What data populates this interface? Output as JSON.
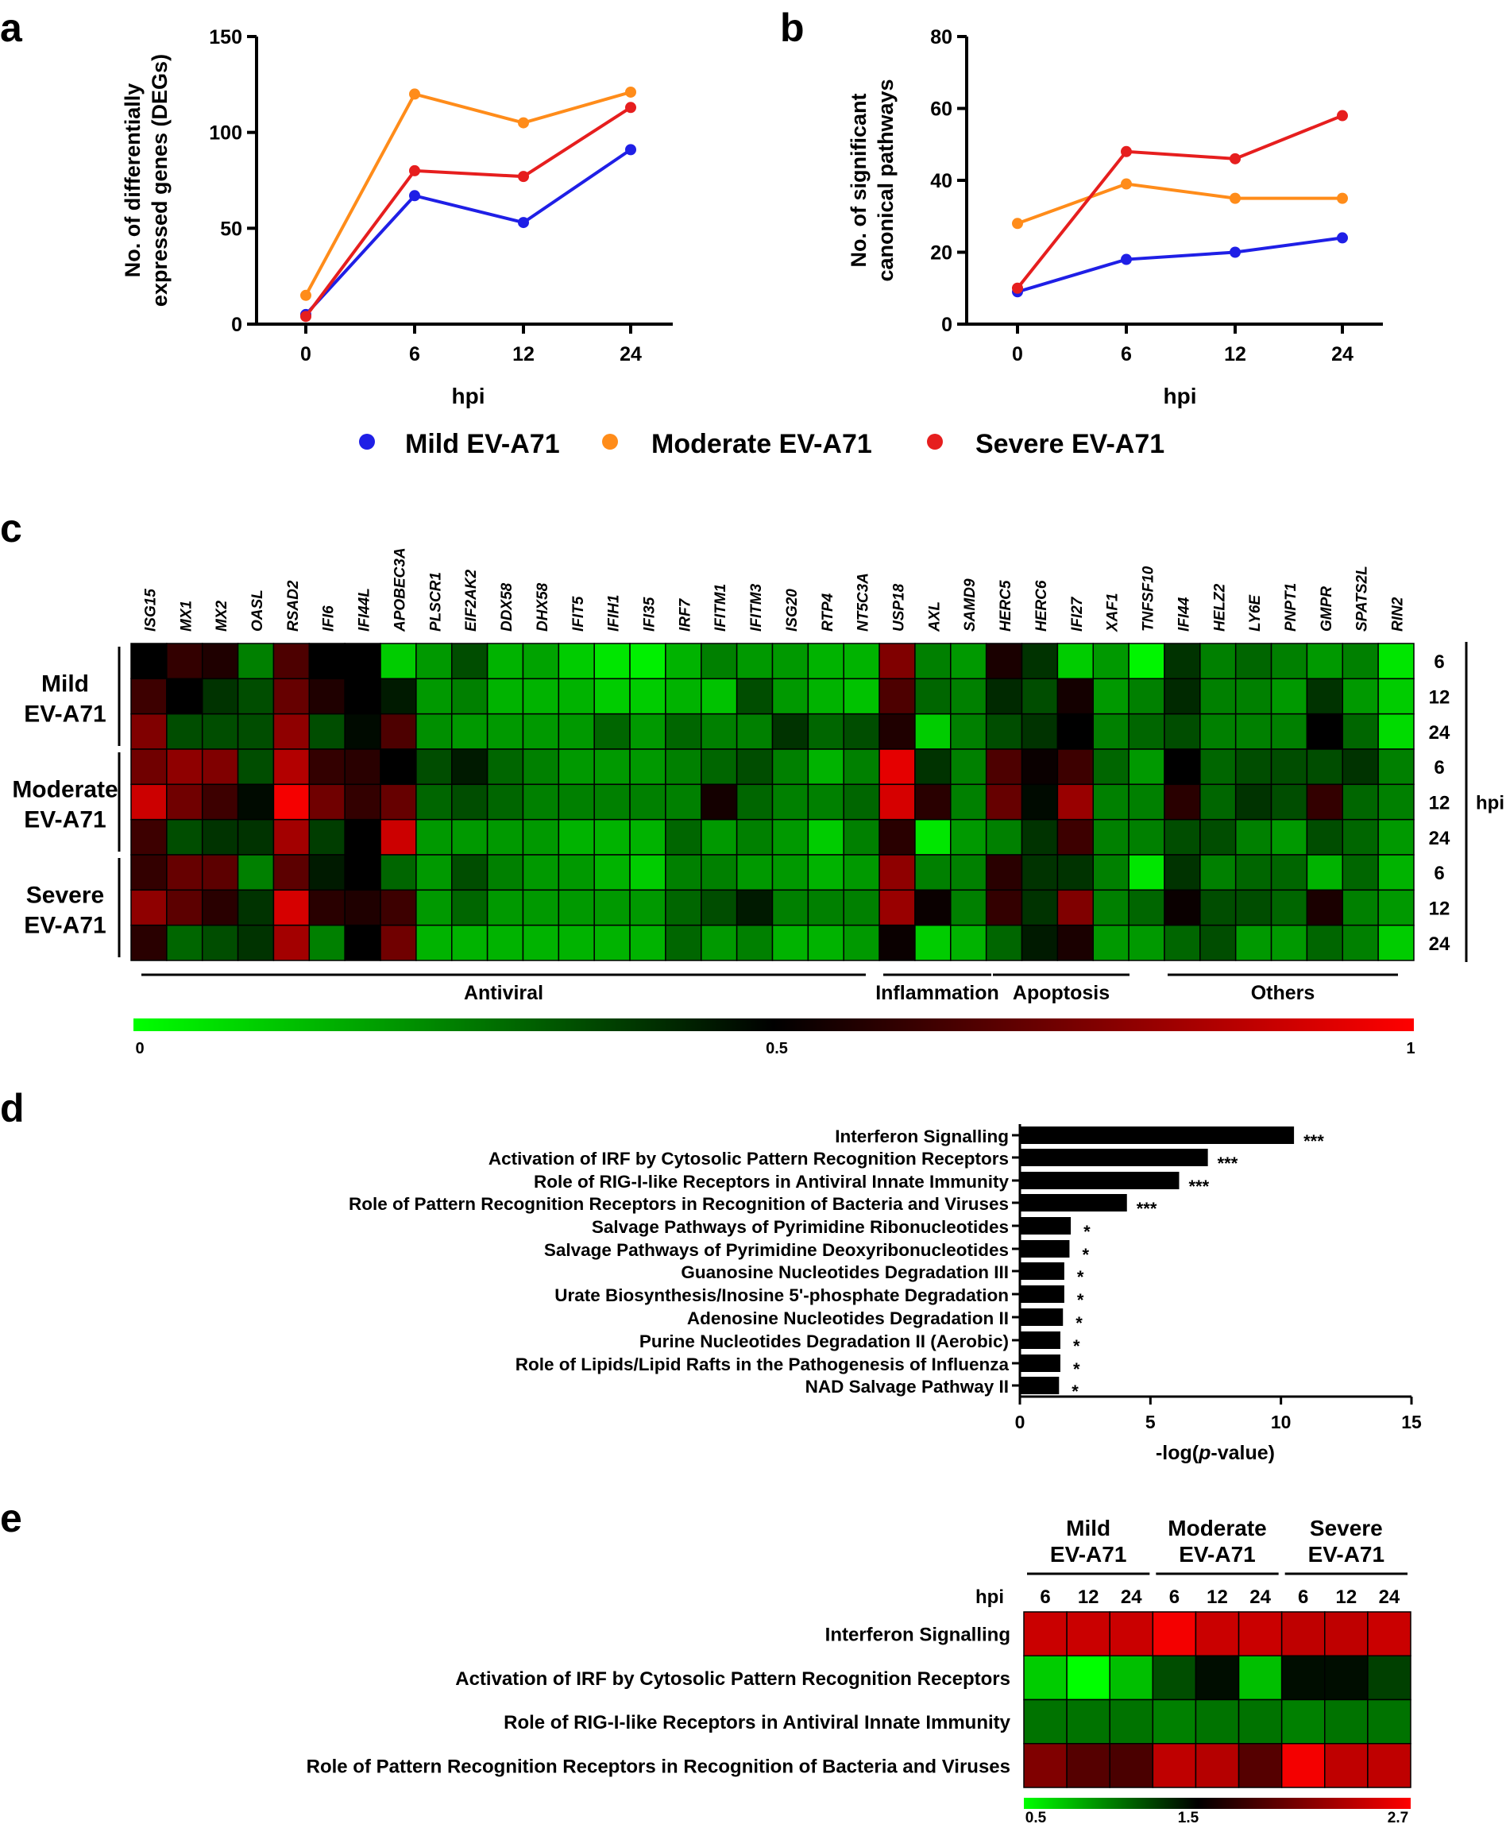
{
  "panels": {
    "a": "a",
    "b": "b",
    "c": "c",
    "d": "d",
    "e": "e"
  },
  "legend": [
    {
      "label": "Mild EV-A71",
      "color": "#1f1fe6"
    },
    {
      "label": "Moderate EV-A71",
      "color": "#ff8c1a"
    },
    {
      "label": "Severe EV-A71",
      "color": "#e61e1e"
    }
  ],
  "chart_data": [
    {
      "panel": "a",
      "type": "line",
      "x": [
        0,
        6,
        12,
        24
      ],
      "x_tick_labels": [
        "0",
        "6",
        "12",
        "24"
      ],
      "xlabel": "hpi",
      "ylabel_lines": [
        "No. of differentially",
        "expressed genes (DEGs)"
      ],
      "ylim": [
        0,
        150
      ],
      "yticks": [
        0,
        50,
        100,
        150
      ],
      "series": [
        {
          "name": "Mild EV-A71",
          "color": "#1f1fe6",
          "values": [
            5,
            67,
            53,
            91
          ]
        },
        {
          "name": "Moderate EV-A71",
          "color": "#ff8c1a",
          "values": [
            15,
            120,
            105,
            121
          ]
        },
        {
          "name": "Severe EV-A71",
          "color": "#e61e1e",
          "values": [
            4,
            80,
            77,
            113
          ]
        }
      ]
    },
    {
      "panel": "b",
      "type": "line",
      "x": [
        0,
        6,
        12,
        24
      ],
      "x_tick_labels": [
        "0",
        "6",
        "12",
        "24"
      ],
      "xlabel": "hpi",
      "ylabel_lines": [
        "No. of significant",
        "canonical pathways"
      ],
      "ylim": [
        0,
        80
      ],
      "yticks": [
        0,
        20,
        40,
        60,
        80
      ],
      "series": [
        {
          "name": "Mild EV-A71",
          "color": "#1f1fe6",
          "values": [
            9,
            18,
            20,
            24
          ]
        },
        {
          "name": "Moderate EV-A71",
          "color": "#ff8c1a",
          "values": [
            28,
            39,
            35,
            35
          ]
        },
        {
          "name": "Severe EV-A71",
          "color": "#e61e1e",
          "values": [
            10,
            48,
            46,
            58
          ]
        }
      ]
    },
    {
      "panel": "c",
      "type": "heatmap",
      "columns": [
        "ISG15",
        "MX1",
        "MX2",
        "OASL",
        "RSAD2",
        "IFI6",
        "IFI44L",
        "APOBEC3A",
        "PLSCR1",
        "EIF2AK2",
        "DDX58",
        "DHX58",
        "IFIT5",
        "IFIH1",
        "IFI35",
        "IRF7",
        "IFITM1",
        "IFITM3",
        "ISG20",
        "RTP4",
        "NT5C3A",
        "USP18",
        "AXL",
        "SAMD9",
        "HERC5",
        "HERC6",
        "IFI27",
        "XAF1",
        "TNFSF10",
        "IFI44",
        "HELZ2",
        "LY6E",
        "PNPT1",
        "GMPR",
        "SPATS2L",
        "RIN2"
      ],
      "row_groups": [
        {
          "lines": [
            "Mild",
            "EV-A71"
          ]
        },
        {
          "lines": [
            "Moderate",
            "EV-A71"
          ]
        },
        {
          "lines": [
            "Severe",
            "EV-A71"
          ]
        }
      ],
      "row_hpi": [
        "6",
        "12",
        "24",
        "6",
        "12",
        "24",
        "6",
        "12",
        "24"
      ],
      "right_label": "hpi",
      "categories": [
        {
          "label": "Antiviral",
          "from": 0,
          "to": 20
        },
        {
          "label": "Inflammation",
          "from": 21,
          "to": 23
        },
        {
          "label": "Apoptosis",
          "from": 24,
          "to": 28
        },
        {
          "label": "Others",
          "from": 29,
          "to": 35
        }
      ],
      "colorscale": {
        "min": 0,
        "mid": 0.5,
        "max": 1,
        "tick_labels": [
          "0",
          "0.5",
          "1"
        ],
        "colors": [
          "#00ff00",
          "#000000",
          "#ff0000"
        ]
      },
      "values": [
        [
          0.5,
          0.6,
          0.56,
          0.25,
          0.65,
          0.5,
          0.5,
          0.1,
          0.2,
          0.35,
          0.15,
          0.18,
          0.1,
          0.05,
          0.03,
          0.15,
          0.25,
          0.2,
          0.2,
          0.15,
          0.15,
          0.75,
          0.25,
          0.2,
          0.55,
          0.4,
          0.1,
          0.2,
          0.02,
          0.4,
          0.25,
          0.3,
          0.25,
          0.2,
          0.25,
          0.05
        ],
        [
          0.62,
          0.5,
          0.4,
          0.35,
          0.7,
          0.56,
          0.5,
          0.45,
          0.2,
          0.25,
          0.15,
          0.15,
          0.15,
          0.1,
          0.1,
          0.15,
          0.12,
          0.35,
          0.2,
          0.15,
          0.12,
          0.65,
          0.3,
          0.25,
          0.42,
          0.35,
          0.54,
          0.2,
          0.25,
          0.42,
          0.25,
          0.25,
          0.2,
          0.4,
          0.2,
          0.1
        ],
        [
          0.75,
          0.35,
          0.35,
          0.35,
          0.78,
          0.35,
          0.48,
          0.65,
          0.22,
          0.2,
          0.2,
          0.2,
          0.2,
          0.3,
          0.2,
          0.3,
          0.25,
          0.25,
          0.4,
          0.3,
          0.35,
          0.56,
          0.1,
          0.25,
          0.35,
          0.4,
          0.5,
          0.25,
          0.3,
          0.35,
          0.25,
          0.25,
          0.25,
          0.5,
          0.3,
          0.07
        ],
        [
          0.72,
          0.78,
          0.75,
          0.35,
          0.85,
          0.6,
          0.58,
          0.5,
          0.35,
          0.45,
          0.3,
          0.25,
          0.2,
          0.2,
          0.2,
          0.25,
          0.3,
          0.35,
          0.25,
          0.15,
          0.25,
          0.95,
          0.4,
          0.25,
          0.65,
          0.52,
          0.62,
          0.3,
          0.2,
          0.5,
          0.3,
          0.35,
          0.35,
          0.35,
          0.4,
          0.25
        ],
        [
          0.9,
          0.72,
          0.62,
          0.48,
          0.98,
          0.72,
          0.6,
          0.7,
          0.3,
          0.35,
          0.3,
          0.25,
          0.25,
          0.25,
          0.25,
          0.25,
          0.54,
          0.3,
          0.25,
          0.25,
          0.3,
          0.92,
          0.58,
          0.25,
          0.7,
          0.48,
          0.8,
          0.25,
          0.25,
          0.58,
          0.3,
          0.4,
          0.35,
          0.6,
          0.3,
          0.25
        ],
        [
          0.62,
          0.35,
          0.4,
          0.4,
          0.82,
          0.38,
          0.5,
          0.9,
          0.2,
          0.2,
          0.2,
          0.2,
          0.15,
          0.15,
          0.15,
          0.3,
          0.2,
          0.25,
          0.2,
          0.1,
          0.25,
          0.58,
          0.05,
          0.2,
          0.25,
          0.4,
          0.62,
          0.25,
          0.25,
          0.35,
          0.35,
          0.25,
          0.2,
          0.35,
          0.3,
          0.2
        ],
        [
          0.6,
          0.7,
          0.68,
          0.25,
          0.68,
          0.45,
          0.5,
          0.3,
          0.2,
          0.35,
          0.25,
          0.2,
          0.2,
          0.15,
          0.1,
          0.25,
          0.25,
          0.2,
          0.2,
          0.15,
          0.2,
          0.78,
          0.25,
          0.25,
          0.58,
          0.4,
          0.4,
          0.25,
          0.05,
          0.4,
          0.25,
          0.3,
          0.3,
          0.15,
          0.3,
          0.15
        ],
        [
          0.78,
          0.68,
          0.58,
          0.4,
          0.92,
          0.58,
          0.56,
          0.62,
          0.2,
          0.3,
          0.2,
          0.2,
          0.2,
          0.2,
          0.2,
          0.3,
          0.35,
          0.45,
          0.25,
          0.25,
          0.25,
          0.8,
          0.52,
          0.25,
          0.6,
          0.4,
          0.75,
          0.25,
          0.3,
          0.52,
          0.35,
          0.35,
          0.3,
          0.55,
          0.25,
          0.2
        ],
        [
          0.58,
          0.3,
          0.35,
          0.4,
          0.82,
          0.25,
          0.5,
          0.72,
          0.15,
          0.15,
          0.15,
          0.15,
          0.15,
          0.15,
          0.15,
          0.3,
          0.2,
          0.25,
          0.15,
          0.15,
          0.2,
          0.52,
          0.1,
          0.15,
          0.3,
          0.45,
          0.55,
          0.2,
          0.2,
          0.3,
          0.35,
          0.2,
          0.2,
          0.3,
          0.25,
          0.1
        ]
      ]
    },
    {
      "panel": "d",
      "type": "bar",
      "orientation": "horizontal",
      "categories": [
        "Interferon Signalling",
        "Activation of IRF by Cytosolic Pattern Recognition Receptors",
        "Role of RIG-I-like Receptors in Antiviral Innate Immunity",
        "Role of Pattern Recognition Receptors in Recognition of Bacteria and Viruses",
        "Salvage Pathways of Pyrimidine Ribonucleotides",
        "Salvage Pathways of Pyrimidine Deoxyribonucleotides",
        "Guanosine Nucleotides Degradation III",
        "Urate Biosynthesis/Inosine 5'-phosphate Degradation",
        "Adenosine Nucleotides Degradation II",
        "Purine Nucleotides Degradation II (Aerobic)",
        "Role of Lipids/Lipid Rafts in the Pathogenesis of Influenza",
        "NAD Salvage Pathway II"
      ],
      "values": [
        10.5,
        7.2,
        6.1,
        4.1,
        1.95,
        1.9,
        1.7,
        1.7,
        1.65,
        1.55,
        1.55,
        1.5
      ],
      "significance": [
        "***",
        "***",
        "***",
        "***",
        "*",
        "*",
        "*",
        "*",
        "*",
        "*",
        "*",
        "*"
      ],
      "xlabel": {
        "prefix": "-log(",
        "italic": "p",
        "suffix": "-value)"
      },
      "xlim": [
        0,
        15
      ],
      "xticks": [
        0,
        5,
        10,
        15
      ]
    },
    {
      "panel": "e",
      "type": "heatmap",
      "rows": [
        "Interferon Signalling",
        "Activation of IRF by Cytosolic Pattern Recognition Receptors",
        "Role of RIG-I-like Receptors in Antiviral Innate Immunity",
        "Role of Pattern Recognition Receptors in Recognition of Bacteria and Viruses"
      ],
      "column_groups": [
        {
          "lines": [
            "Mild",
            "EV-A71"
          ]
        },
        {
          "lines": [
            "Moderate",
            "EV-A71"
          ]
        },
        {
          "lines": [
            "Severe",
            "EV-A71"
          ]
        }
      ],
      "hpi_label": "hpi",
      "columns": [
        "6",
        "12",
        "24",
        "6",
        "12",
        "24",
        "6",
        "12",
        "24"
      ],
      "colorscale": {
        "min": 0.5,
        "mid": 1.5,
        "max": 2.7,
        "tick_labels": [
          "0.5",
          "1.5",
          "2.7"
        ],
        "colors": [
          "#00ff00",
          "#000000",
          "#ff0000"
        ]
      },
      "values": [
        [
          2.45,
          2.45,
          2.45,
          2.65,
          2.45,
          2.45,
          2.4,
          2.4,
          2.45
        ],
        [
          0.7,
          0.5,
          0.75,
          1.2,
          1.45,
          0.75,
          1.45,
          1.45,
          1.25
        ],
        [
          1.05,
          1.05,
          1.05,
          1.0,
          1.05,
          1.05,
          1.0,
          1.05,
          1.05
        ],
        [
          2.1,
          1.9,
          1.85,
          2.4,
          2.35,
          1.9,
          2.65,
          2.4,
          2.4
        ]
      ]
    }
  ]
}
